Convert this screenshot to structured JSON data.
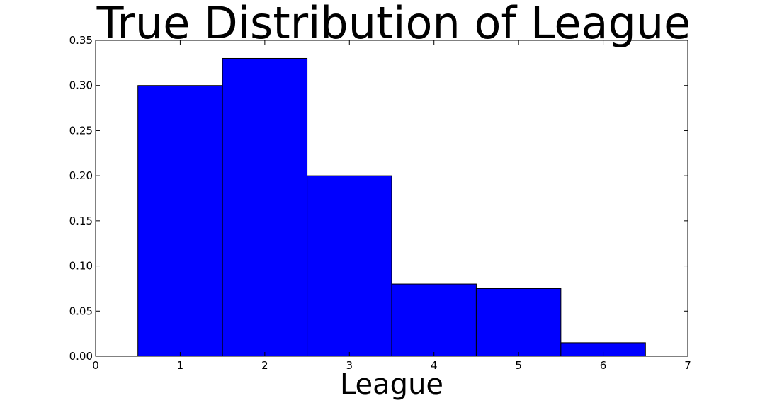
{
  "chart_data": {
    "type": "bar",
    "title": "True Distribution of League",
    "xlabel": "League",
    "ylabel": "",
    "x": [
      1,
      2,
      3,
      4,
      5,
      6
    ],
    "values": [
      0.3,
      0.33,
      0.2,
      0.08,
      0.075,
      0.015
    ],
    "bar_width": 1,
    "xlim": [
      0,
      7
    ],
    "ylim": [
      0,
      0.35
    ],
    "xticks": [
      "0",
      "1",
      "2",
      "3",
      "4",
      "5",
      "6",
      "7"
    ],
    "yticks": [
      "0.00",
      "0.05",
      "0.10",
      "0.15",
      "0.20",
      "0.25",
      "0.30",
      "0.35"
    ],
    "bar_color": "#0000ff",
    "edge_color": "#000000",
    "grid": false,
    "legend": "none"
  }
}
